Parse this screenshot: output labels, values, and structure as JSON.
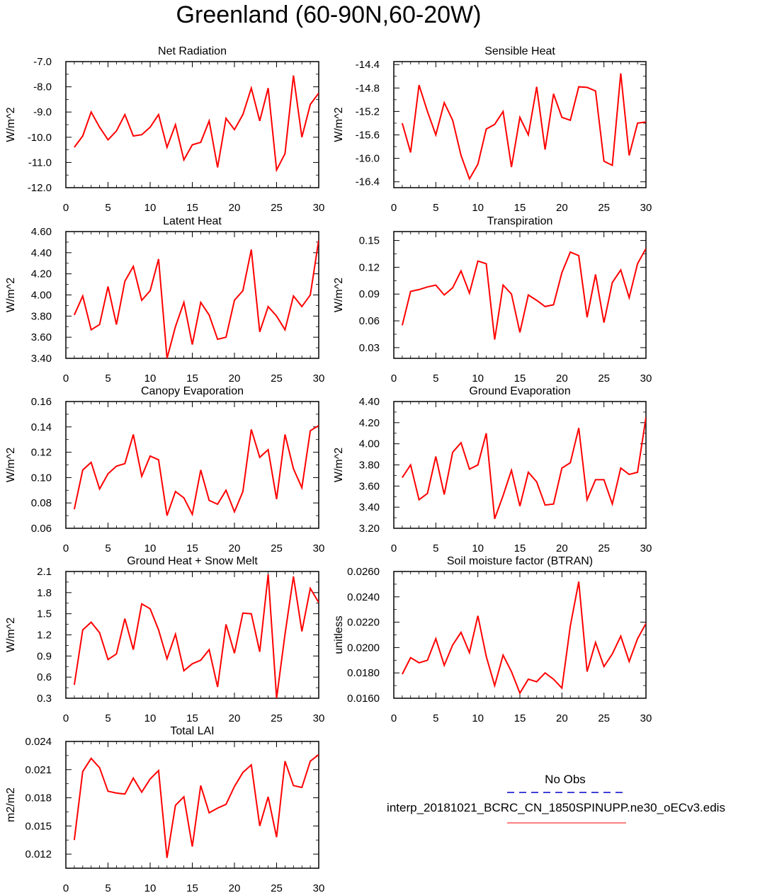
{
  "title": "Greenland (60-90N,60-20W)",
  "legend": {
    "entries": [
      {
        "label": "No Obs",
        "color": "#0000cc",
        "style": "dashed"
      },
      {
        "label": "interp_20181021_BCRC_CN_1850SPINUPP.ne30_oECv3.edis",
        "color": "#ff0000",
        "style": "solid"
      }
    ]
  },
  "chart_data": [
    {
      "type": "line",
      "title": "Net Radiation",
      "ylabel": "W/m^2",
      "xlim": [
        0,
        30
      ],
      "ylim": [
        -12,
        -7
      ],
      "xticks": [
        "0",
        "5",
        "10",
        "15",
        "20",
        "25",
        "30"
      ],
      "yticks": [
        "-12.0",
        "-11.0",
        "-10.0",
        "-9.0",
        "-8.0",
        "-7.0"
      ],
      "color": "#ff0000",
      "x": [
        1,
        2,
        3,
        4,
        5,
        6,
        7,
        8,
        9,
        10,
        11,
        12,
        13,
        14,
        15,
        16,
        17,
        18,
        19,
        20,
        21,
        22,
        23,
        24,
        25,
        26,
        27,
        28,
        29,
        30
      ],
      "values": [
        -10.4,
        -9.95,
        -9.0,
        -9.6,
        -10.1,
        -9.75,
        -9.1,
        -9.95,
        -9.9,
        -9.6,
        -9.1,
        -10.4,
        -9.5,
        -10.9,
        -10.3,
        -10.2,
        -9.35,
        -11.2,
        -9.25,
        -9.7,
        -9.1,
        -8.05,
        -9.35,
        -8.05,
        -11.3,
        -10.65,
        -7.55,
        -10.0,
        -8.7,
        -8.25
      ]
    },
    {
      "type": "line",
      "title": "Sensible Heat",
      "ylabel": "W/m^2",
      "xlim": [
        0,
        30
      ],
      "ylim": [
        -16.5,
        -14.35
      ],
      "xticks": [
        "0",
        "5",
        "10",
        "15",
        "20",
        "25",
        "30"
      ],
      "yticks": [
        "-16.4",
        "-16.0",
        "-15.6",
        "-15.2",
        "-14.8",
        "-14.4"
      ],
      "color": "#ff0000",
      "x": [
        1,
        2,
        3,
        4,
        5,
        6,
        7,
        8,
        9,
        10,
        11,
        12,
        13,
        14,
        15,
        16,
        17,
        18,
        19,
        20,
        21,
        22,
        23,
        24,
        25,
        26,
        27,
        28,
        29,
        30
      ],
      "values": [
        -15.4,
        -15.9,
        -14.75,
        -15.2,
        -15.6,
        -15.05,
        -15.35,
        -15.95,
        -16.35,
        -16.1,
        -15.5,
        -15.42,
        -15.2,
        -16.15,
        -15.3,
        -15.6,
        -14.78,
        -15.85,
        -14.9,
        -15.3,
        -15.35,
        -14.78,
        -14.79,
        -14.85,
        -16.05,
        -16.12,
        -14.55,
        -15.95,
        -15.4,
        -15.38
      ]
    },
    {
      "type": "line",
      "title": "Latent Heat",
      "ylabel": "W/m^2",
      "xlim": [
        0,
        30
      ],
      "ylim": [
        3.4,
        4.6
      ],
      "xticks": [
        "0",
        "5",
        "10",
        "15",
        "20",
        "25",
        "30"
      ],
      "yticks": [
        "3.40",
        "3.60",
        "3.80",
        "4.00",
        "4.20",
        "4.40",
        "4.60"
      ],
      "color": "#ff0000",
      "x": [
        1,
        2,
        3,
        4,
        5,
        6,
        7,
        8,
        9,
        10,
        11,
        12,
        13,
        14,
        15,
        16,
        17,
        18,
        19,
        20,
        21,
        22,
        23,
        24,
        25,
        26,
        27,
        28,
        29,
        30
      ],
      "values": [
        3.81,
        3.99,
        3.67,
        3.72,
        4.08,
        3.72,
        4.13,
        4.27,
        3.95,
        4.04,
        4.34,
        3.4,
        3.7,
        3.93,
        3.53,
        3.93,
        3.81,
        3.58,
        3.6,
        3.95,
        4.04,
        4.43,
        3.65,
        3.89,
        3.8,
        3.67,
        3.99,
        3.89,
        4.0,
        4.52
      ]
    },
    {
      "type": "line",
      "title": "Transpiration",
      "ylabel": "W/m^2",
      "xlim": [
        0,
        30
      ],
      "ylim": [
        0.018,
        0.16
      ],
      "xticks": [
        "0",
        "5",
        "10",
        "15",
        "20",
        "25",
        "30"
      ],
      "yticks": [
        "0.03",
        "0.06",
        "0.09",
        "0.12",
        "0.15"
      ],
      "color": "#ff0000",
      "x": [
        1,
        2,
        3,
        4,
        5,
        6,
        7,
        8,
        9,
        10,
        11,
        12,
        13,
        14,
        15,
        16,
        17,
        18,
        19,
        20,
        21,
        22,
        23,
        24,
        25,
        26,
        27,
        28,
        29,
        30
      ],
      "values": [
        0.055,
        0.093,
        0.095,
        0.098,
        0.1,
        0.089,
        0.097,
        0.116,
        0.091,
        0.127,
        0.124,
        0.039,
        0.1,
        0.09,
        0.047,
        0.089,
        0.083,
        0.076,
        0.078,
        0.114,
        0.137,
        0.133,
        0.064,
        0.112,
        0.058,
        0.103,
        0.117,
        0.086,
        0.124,
        0.141
      ]
    },
    {
      "type": "line",
      "title": "Canopy Evaporation",
      "ylabel": "W/m^2",
      "xlim": [
        0,
        30
      ],
      "ylim": [
        0.06,
        0.16
      ],
      "xticks": [
        "0",
        "5",
        "10",
        "15",
        "20",
        "25",
        "30"
      ],
      "yticks": [
        "0.06",
        "0.08",
        "0.10",
        "0.12",
        "0.14",
        "0.16"
      ],
      "color": "#ff0000",
      "x": [
        1,
        2,
        3,
        4,
        5,
        6,
        7,
        8,
        9,
        10,
        11,
        12,
        13,
        14,
        15,
        16,
        17,
        18,
        19,
        20,
        21,
        22,
        23,
        24,
        25,
        26,
        27,
        28,
        29,
        30
      ],
      "values": [
        0.075,
        0.106,
        0.112,
        0.091,
        0.103,
        0.109,
        0.111,
        0.134,
        0.101,
        0.117,
        0.114,
        0.07,
        0.089,
        0.084,
        0.071,
        0.106,
        0.082,
        0.079,
        0.09,
        0.073,
        0.089,
        0.138,
        0.116,
        0.122,
        0.083,
        0.134,
        0.107,
        0.092,
        0.137,
        0.141
      ]
    },
    {
      "type": "line",
      "title": "Ground Evaporation",
      "ylabel": "W/m^2",
      "xlim": [
        0,
        30
      ],
      "ylim": [
        3.2,
        4.4
      ],
      "xticks": [
        "0",
        "5",
        "10",
        "15",
        "20",
        "25",
        "30"
      ],
      "yticks": [
        "3.20",
        "3.40",
        "3.60",
        "3.80",
        "4.00",
        "4.20",
        "4.40"
      ],
      "color": "#ff0000",
      "x": [
        1,
        2,
        3,
        4,
        5,
        6,
        7,
        8,
        9,
        10,
        11,
        12,
        13,
        14,
        15,
        16,
        17,
        18,
        19,
        20,
        21,
        22,
        23,
        24,
        25,
        26,
        27,
        28,
        29,
        30
      ],
      "values": [
        3.68,
        3.8,
        3.47,
        3.53,
        3.88,
        3.52,
        3.92,
        4.01,
        3.76,
        3.8,
        4.1,
        3.29,
        3.51,
        3.75,
        3.41,
        3.73,
        3.64,
        3.42,
        3.43,
        3.77,
        3.82,
        4.15,
        3.47,
        3.66,
        3.66,
        3.43,
        3.77,
        3.71,
        3.73,
        4.25
      ]
    },
    {
      "type": "line",
      "title": "Ground Heat + Snow Melt",
      "ylabel": "W/m^2",
      "xlim": [
        0,
        30
      ],
      "ylim": [
        0.3,
        2.1
      ],
      "xticks": [
        "0",
        "5",
        "10",
        "15",
        "20",
        "25",
        "30"
      ],
      "yticks": [
        "0.3",
        "0.6",
        "0.9",
        "1.2",
        "1.5",
        "1.8",
        "2.1"
      ],
      "color": "#ff0000",
      "x": [
        1,
        2,
        3,
        4,
        5,
        6,
        7,
        8,
        9,
        10,
        11,
        12,
        13,
        14,
        15,
        16,
        17,
        18,
        19,
        20,
        21,
        22,
        23,
        24,
        25,
        26,
        27,
        28,
        29,
        30
      ],
      "values": [
        0.49,
        1.27,
        1.38,
        1.23,
        0.85,
        0.93,
        1.43,
        0.99,
        1.64,
        1.57,
        1.27,
        0.86,
        1.21,
        0.69,
        0.79,
        0.84,
        0.99,
        0.46,
        1.35,
        0.94,
        1.51,
        1.5,
        0.96,
        2.06,
        0.3,
        1.21,
        2.03,
        1.25,
        1.86,
        1.66
      ]
    },
    {
      "type": "line",
      "title": "Soil moisture factor (BTRAN)",
      "ylabel": "unitless",
      "xlim": [
        0,
        30
      ],
      "ylim": [
        0.016,
        0.026
      ],
      "xticks": [
        "0",
        "5",
        "10",
        "15",
        "20",
        "25",
        "30"
      ],
      "yticks": [
        "0.0160",
        "0.0180",
        "0.0200",
        "0.0220",
        "0.0240",
        "0.0260"
      ],
      "color": "#ff0000",
      "x": [
        1,
        2,
        3,
        4,
        5,
        6,
        7,
        8,
        9,
        10,
        11,
        12,
        13,
        14,
        15,
        16,
        17,
        18,
        19,
        20,
        21,
        22,
        23,
        24,
        25,
        26,
        27,
        28,
        29,
        30
      ],
      "values": [
        0.0179,
        0.0192,
        0.0188,
        0.019,
        0.0207,
        0.0186,
        0.0202,
        0.0212,
        0.0196,
        0.0225,
        0.0193,
        0.017,
        0.0194,
        0.0181,
        0.0164,
        0.0175,
        0.0173,
        0.018,
        0.0175,
        0.0168,
        0.0217,
        0.0252,
        0.0181,
        0.0204,
        0.0185,
        0.0195,
        0.0209,
        0.0189,
        0.0207,
        0.0219
      ]
    },
    {
      "type": "line",
      "title": "Total LAI",
      "ylabel": "m2/m2",
      "xlim": [
        0,
        30
      ],
      "ylim": [
        0.0105,
        0.024
      ],
      "xticks": [
        "0",
        "5",
        "10",
        "15",
        "20",
        "25",
        "30"
      ],
      "yticks": [
        "0.012",
        "0.015",
        "0.018",
        "0.021",
        "0.024"
      ],
      "color": "#ff0000",
      "x": [
        1,
        2,
        3,
        4,
        5,
        6,
        7,
        8,
        9,
        10,
        11,
        12,
        13,
        14,
        15,
        16,
        17,
        18,
        19,
        20,
        21,
        22,
        23,
        24,
        25,
        26,
        27,
        28,
        29,
        30
      ],
      "values": [
        0.0135,
        0.0208,
        0.0222,
        0.0212,
        0.0187,
        0.0185,
        0.0184,
        0.0201,
        0.0186,
        0.02,
        0.0209,
        0.0116,
        0.0172,
        0.0181,
        0.0128,
        0.0193,
        0.0164,
        0.0169,
        0.0173,
        0.0192,
        0.0207,
        0.0215,
        0.015,
        0.0181,
        0.0138,
        0.0219,
        0.0193,
        0.0191,
        0.0219,
        0.0226
      ]
    }
  ]
}
